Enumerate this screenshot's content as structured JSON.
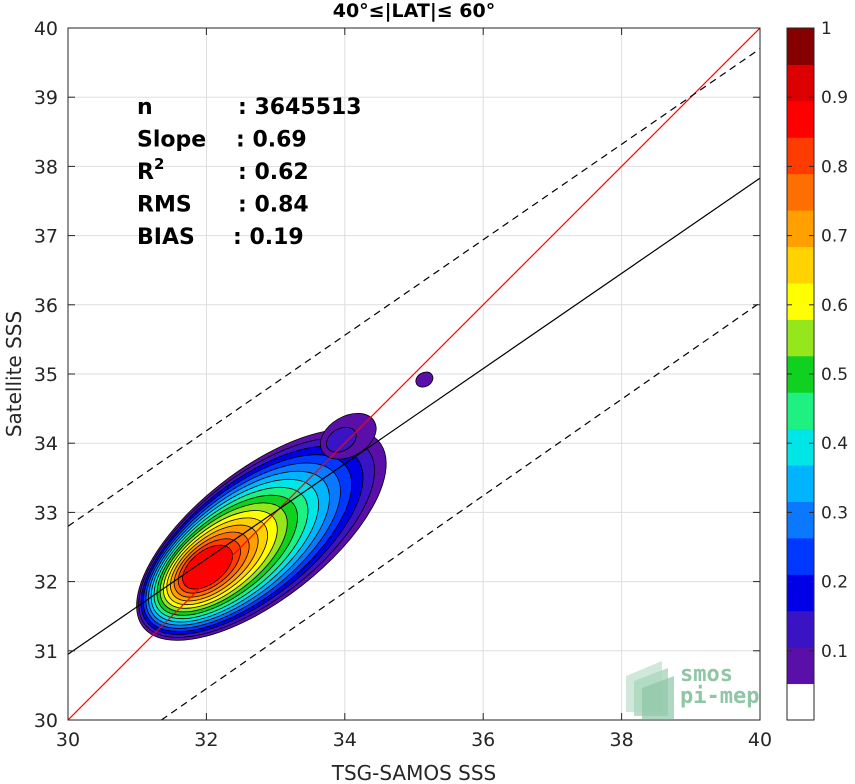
{
  "chart_data": {
    "type": "contour",
    "title": "40°≤|LAT|≤ 60°",
    "xlabel": "TSG-SAMOS SSS",
    "ylabel": "Satellite SSS",
    "xlim": [
      30,
      40
    ],
    "ylim": [
      30,
      40
    ],
    "xticks": [
      "30",
      "32",
      "34",
      "36",
      "38",
      "40"
    ],
    "yticks": [
      "30",
      "31",
      "32",
      "33",
      "34",
      "35",
      "36",
      "37",
      "38",
      "39",
      "40"
    ],
    "grid": true,
    "stats": [
      {
        "label": "n",
        "value": ": 3645513"
      },
      {
        "label": "Slope",
        "value": ": 0.69"
      },
      {
        "label": "R",
        "sup": "2",
        "value": ": 0.62"
      },
      {
        "label": "RMS",
        "value": ": 0.84"
      },
      {
        "label": "BIAS",
        "value": ": 0.19"
      }
    ],
    "lines": [
      {
        "id": "one-to-one",
        "color": "#ff0000",
        "style": "solid",
        "x": [
          30,
          40
        ],
        "y": [
          30,
          40
        ]
      },
      {
        "id": "regression",
        "color": "#000000",
        "style": "solid",
        "x": [
          30,
          40
        ],
        "y": [
          30.95,
          37.83
        ]
      },
      {
        "id": "upper-bound",
        "color": "#000000",
        "style": "dashed",
        "x": [
          30,
          40
        ],
        "y": [
          32.8,
          39.7
        ]
      },
      {
        "id": "lower-bound",
        "color": "#000000",
        "style": "dashed",
        "x": [
          31.35,
          40
        ],
        "y": [
          30,
          36.03
        ]
      }
    ],
    "density_peak": {
      "x": 32.0,
      "y": 32.2
    },
    "colorbar": {
      "ticks": [
        "0.1",
        "0.2",
        "0.3",
        "0.4",
        "0.5",
        "0.6",
        "0.7",
        "0.8",
        "0.9",
        "1"
      ],
      "range": [
        0,
        1
      ],
      "levels": 18,
      "colors": [
        "#ffffff",
        "#5a0fa8",
        "#3a14c4",
        "#0000e6",
        "#0038ff",
        "#0a78ff",
        "#00b4ff",
        "#00e6e6",
        "#1ef082",
        "#10d020",
        "#96e61e",
        "#ffff00",
        "#ffd200",
        "#ffa000",
        "#ff6e00",
        "#ff3c00",
        "#ff0000",
        "#dc0000",
        "#870000"
      ]
    }
  },
  "logo": {
    "line1": "smos",
    "line2": "pi-mep"
  }
}
